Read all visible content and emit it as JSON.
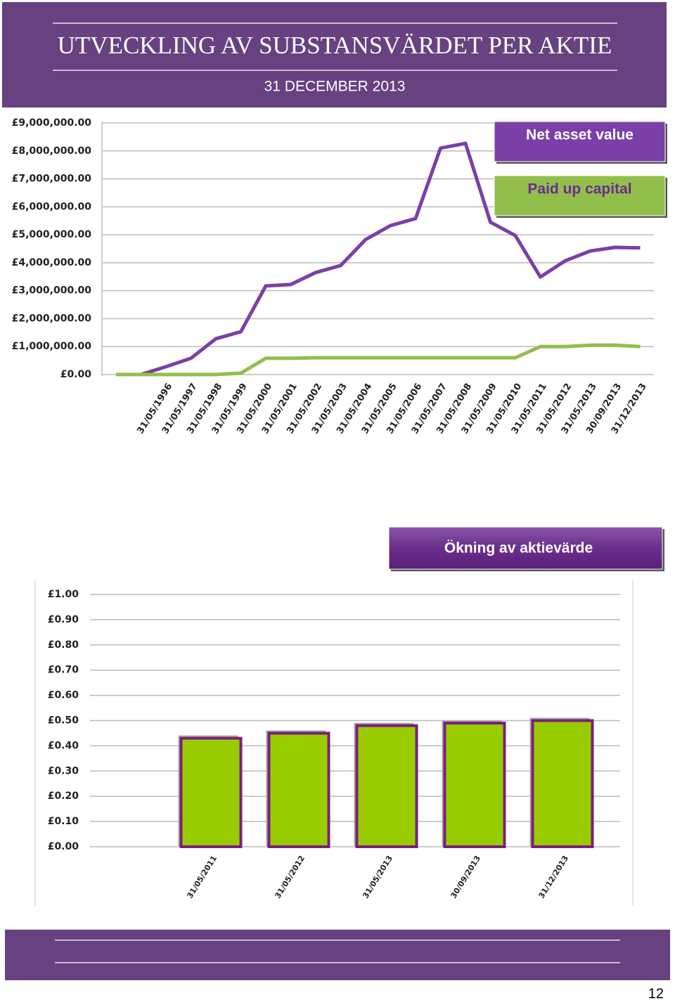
{
  "header": {
    "title": "UTVECKLING AV SUBSTANSVÄRDET PER AKTIE",
    "subtitle": "31 DECEMBER 2013"
  },
  "page_number": "12",
  "chart_data": [
    {
      "type": "line",
      "categories": [
        null,
        null,
        "31/05/1996",
        "31/05/1997",
        "31/05/1998",
        "31/05/1999",
        "31/05/2000",
        "31/05/2001",
        "31/05/2002",
        "31/05/2003",
        "31/05/2004",
        "31/05/2005",
        "31/05/2006",
        "31/05/2007",
        "31/05/2008",
        "31/05/2009",
        "31/05/2010",
        "31/05/2011",
        "31/05/2012",
        "31/05/2013",
        "30/09/2013",
        "31/12/2013"
      ],
      "series": [
        {
          "name": "Net asset value",
          "color": "#7b3fa8",
          "values": [
            0,
            0,
            280000,
            580000,
            1280000,
            1530000,
            3170000,
            3220000,
            3650000,
            3900000,
            4830000,
            5330000,
            5580000,
            8100000,
            8270000,
            5450000,
            4970000,
            3490000,
            4070000,
            4420000,
            4550000,
            4530000
          ]
        },
        {
          "name": "Paid up capital",
          "color": "#92bf4c",
          "values": [
            0,
            0,
            0,
            0,
            0,
            50000,
            580000,
            580000,
            600000,
            600000,
            600000,
            600000,
            600000,
            600000,
            600000,
            600000,
            600000,
            1000000,
            1000000,
            1050000,
            1050000,
            1000000
          ]
        }
      ],
      "ylim": [
        0,
        9000000
      ],
      "yticks": [
        {
          "value": 0,
          "label": "£0.00"
        },
        {
          "value": 1000000,
          "label": "£1,000,000.00"
        },
        {
          "value": 2000000,
          "label": "£2,000,000.00"
        },
        {
          "value": 3000000,
          "label": "£3,000,000.00"
        },
        {
          "value": 4000000,
          "label": "£4,000,000.00"
        },
        {
          "value": 5000000,
          "label": "£5,000,000.00"
        },
        {
          "value": 6000000,
          "label": "£6,000,000.00"
        },
        {
          "value": 7000000,
          "label": "£7,000,000.00"
        },
        {
          "value": 8000000,
          "label": "£8,000,000.00"
        },
        {
          "value": 9000000,
          "label": "£9,000,000.00"
        }
      ],
      "grid": true,
      "legend": "top-right"
    },
    {
      "type": "bar",
      "title": "Ökning av aktievärde",
      "categories": [
        "31/05/2011",
        "31/05/2012",
        "31/05/2013",
        "30/09/2013",
        "31/12/2013"
      ],
      "values": [
        0.43,
        0.45,
        0.48,
        0.49,
        0.5
      ],
      "color": "#99cc00",
      "edge_color": "#7a1f7a",
      "ylim": [
        0,
        1
      ],
      "yticks": [
        {
          "value": 0,
          "label": "£0.00"
        },
        {
          "value": 0.1,
          "label": "£0.10"
        },
        {
          "value": 0.2,
          "label": "£0.20"
        },
        {
          "value": 0.3,
          "label": "£0.30"
        },
        {
          "value": 0.4,
          "label": "£0.40"
        },
        {
          "value": 0.5,
          "label": "£0.50"
        },
        {
          "value": 0.6,
          "label": "£0.60"
        },
        {
          "value": 0.7,
          "label": "£0.70"
        },
        {
          "value": 0.8,
          "label": "£0.80"
        },
        {
          "value": 0.9,
          "label": "£0.90"
        },
        {
          "value": 1,
          "label": "£1.00"
        }
      ],
      "grid": true
    }
  ]
}
